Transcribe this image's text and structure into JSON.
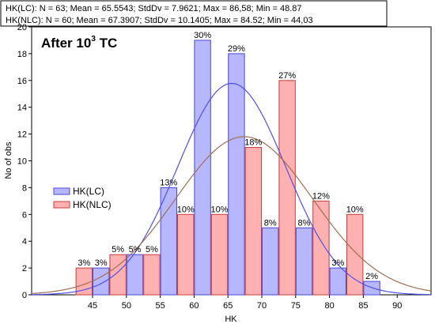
{
  "stats": {
    "lc_line": "HK(LC):    N = 63; Mean = 65.5543; StdDv = 7.9621; Max = 86,58; Min = 48.87",
    "nlc_line": "HK(NLC):   N = 60; Mean = 67.3907; StdDv = 10.1405; Max = 84.52; Min = 44,03"
  },
  "panel": {
    "title_main": "After 10",
    "title_sup": "3",
    "title_tail": " TC"
  },
  "colors": {
    "lc_fill": "#b7b7ff",
    "lc_stroke": "#4848d8",
    "lc_curve": "#5050e8",
    "nlc_fill": "#ffb0b0",
    "nlc_stroke": "#c83c3c",
    "nlc_curve": "#a06e4e"
  },
  "chart_data": {
    "type": "bar",
    "xlabel": "HK",
    "ylabel": "No of obs",
    "xlim": [
      36,
      95
    ],
    "ylim": [
      0,
      20
    ],
    "x_ticks": [
      45,
      50,
      55,
      60,
      65,
      70,
      75,
      80,
      85,
      90
    ],
    "y_ticks": [
      0,
      2,
      4,
      6,
      8,
      10,
      12,
      14,
      16,
      18,
      20
    ],
    "bin_width": 5,
    "bin_centers": [
      42.5,
      47.5,
      52.5,
      57.5,
      62.5,
      67.5,
      72.5,
      77.5,
      82.5,
      87.5
    ],
    "legend": [
      "HK(LC)",
      "HK(NLC)"
    ],
    "series": [
      {
        "name": "HK(LC)",
        "counts": [
          0,
          2,
          3,
          8,
          19,
          18,
          5,
          5,
          2,
          1
        ],
        "labels": [
          "",
          "3%",
          "5%",
          "13%",
          "30%",
          "29%",
          "8%",
          "8%",
          "3%",
          "2%"
        ],
        "normal_fit": {
          "n": 63,
          "mean": 65.5543,
          "sd": 7.9621
        }
      },
      {
        "name": "HK(NLC)",
        "counts": [
          2,
          3,
          3,
          6,
          6,
          11,
          16,
          7,
          6,
          0
        ],
        "labels": [
          "3%",
          "5%",
          "5%",
          "10%",
          "10%",
          "18%",
          "27%",
          "12%",
          "10%",
          ""
        ],
        "normal_fit": {
          "n": 60,
          "mean": 67.3907,
          "sd": 10.1405
        }
      }
    ]
  }
}
